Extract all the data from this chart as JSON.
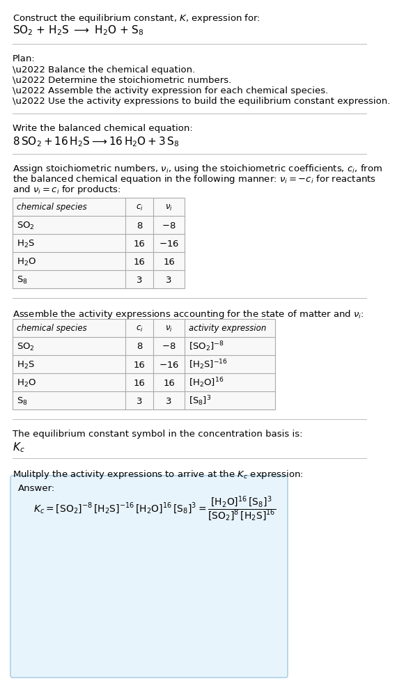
{
  "bg_color": "#ffffff",
  "text_color": "#000000",
  "table_border_color": "#aaaaaa",
  "answer_box_color": "#e8f4fb",
  "answer_box_border": "#a0c8e0",
  "separator_color": "#bbbbbb",
  "font_size": 9.5,
  "small_font": 8.5,
  "title1": "Construct the equilibrium constant, $K$, expression for:",
  "title2_parts": [
    "$\\mathrm{SO_2}$",
    " + ",
    "$\\mathrm{H_2S}$",
    " \\longrightarrow  ",
    "$\\mathrm{H_2O}$",
    " + ",
    "$\\mathrm{S_8}$"
  ],
  "plan_header": "Plan:",
  "plan_bullets": [
    "\\u2022 Balance the chemical equation.",
    "\\u2022 Determine the stoichiometric numbers.",
    "\\u2022 Assemble the activity expression for each chemical species.",
    "\\u2022 Use the activity expressions to build the equilibrium constant expression."
  ],
  "balanced_header": "Write the balanced chemical equation:",
  "balanced_eq": "$8\\,\\mathrm{SO_2} + 16\\,\\mathrm{H_2S} \\longrightarrow 16\\,\\mathrm{H_2O} + 3\\,\\mathrm{S_8}$",
  "stoich_lines": [
    "Assign stoichiometric numbers, $\\nu_i$, using the stoichiometric coefficients, $c_i$, from",
    "the balanced chemical equation in the following manner: $\\nu_i = -c_i$ for reactants",
    "and $\\nu_i = c_i$ for products:"
  ],
  "table1_col_headers": [
    "chemical species",
    "$c_i$",
    "$\\nu_i$"
  ],
  "table1_rows": [
    [
      "$\\mathrm{SO_2}$",
      "8",
      "$-8$"
    ],
    [
      "$\\mathrm{H_2S}$",
      "16",
      "$-16$"
    ],
    [
      "$\\mathrm{H_2O}$",
      "16",
      "16"
    ],
    [
      "$\\mathrm{S_8}$",
      "3",
      "3"
    ]
  ],
  "activity_header": "Assemble the activity expressions accounting for the state of matter and $\\nu_i$:",
  "table2_col_headers": [
    "chemical species",
    "$c_i$",
    "$\\nu_i$",
    "activity expression"
  ],
  "table2_rows": [
    [
      "$\\mathrm{SO_2}$",
      "8",
      "$-8$",
      "$[\\mathrm{SO_2}]^{-8}$"
    ],
    [
      "$\\mathrm{H_2S}$",
      "16",
      "$-16$",
      "$[\\mathrm{H_2S}]^{-16}$"
    ],
    [
      "$\\mathrm{H_2O}$",
      "16",
      "16",
      "$[\\mathrm{H_2O}]^{16}$"
    ],
    [
      "$\\mathrm{S_8}$",
      "3",
      "3",
      "$[\\mathrm{S_8}]^{3}$"
    ]
  ],
  "kc_text": "The equilibrium constant symbol in the concentration basis is:",
  "kc_symbol": "$K_c$",
  "multiply_text": "Mulitply the activity expressions to arrive at the $K_c$ expression:",
  "answer_label": "Answer:",
  "answer_line1": "$K_c = [\\mathrm{SO_2}]^{-8}\\,[\\mathrm{H_2S}]^{-16}\\,[\\mathrm{H_2O}]^{16}\\,[\\mathrm{S_8}]^{3} = \\dfrac{[\\mathrm{H_2O}]^{16}\\,[\\mathrm{S_8}]^{3}}{[\\mathrm{SO_2}]^{8}\\,[\\mathrm{H_2S}]^{16}}$"
}
